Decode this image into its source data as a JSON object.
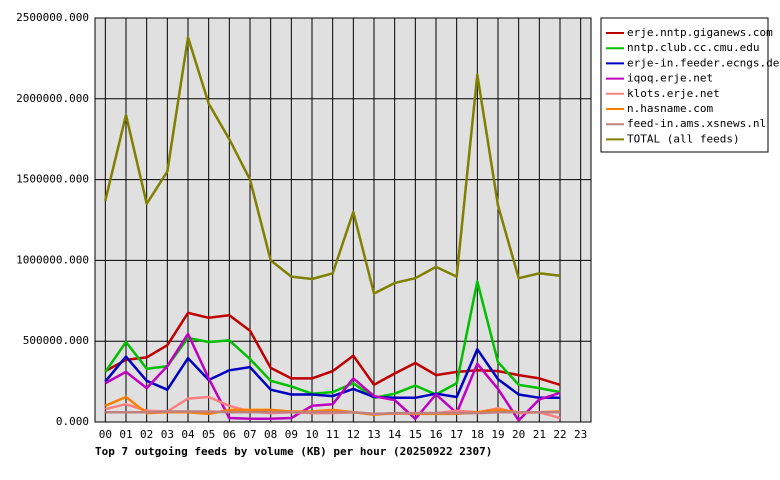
{
  "chart_data": {
    "type": "line",
    "title": "Top 7 outgoing feeds by volume (KB) per hour (20250922 2307)",
    "categories": [
      "00",
      "01",
      "02",
      "03",
      "04",
      "05",
      "06",
      "07",
      "08",
      "09",
      "10",
      "11",
      "12",
      "13",
      "14",
      "15",
      "16",
      "17",
      "18",
      "19",
      "20",
      "21",
      "22",
      "23"
    ],
    "ylim": [
      0,
      2500000
    ],
    "yticks": [
      {
        "value": 0,
        "label": "0.000"
      },
      {
        "value": 500000,
        "label": "500000.000"
      },
      {
        "value": 1000000,
        "label": "1000000.000"
      },
      {
        "value": 1500000,
        "label": "1500000.000"
      },
      {
        "value": 2000000,
        "label": "2000000.000"
      },
      {
        "value": 2500000,
        "label": "2500000.000"
      }
    ],
    "grid": true,
    "legend": "right",
    "series": [
      {
        "name": "erje.nntp.giganews.com",
        "color": "#c00000",
        "values": [
          315000,
          385000,
          400000,
          475000,
          675000,
          645000,
          660000,
          565000,
          335000,
          270000,
          270000,
          315000,
          410000,
          230000,
          300000,
          365000,
          290000,
          310000,
          320000,
          315000,
          290000,
          270000,
          230000,
          null
        ]
      },
      {
        "name": "nntp.club.cc.cmu.edu",
        "color": "#00c000",
        "values": [
          310000,
          495000,
          330000,
          345000,
          520000,
          495000,
          505000,
          390000,
          255000,
          220000,
          175000,
          185000,
          240000,
          150000,
          175000,
          225000,
          170000,
          240000,
          870000,
          370000,
          230000,
          210000,
          185000,
          null
        ]
      },
      {
        "name": "erje-in.feeder.ecngs.de",
        "color": "#0000c0",
        "values": [
          250000,
          405000,
          255000,
          200000,
          395000,
          260000,
          320000,
          340000,
          200000,
          170000,
          170000,
          160000,
          205000,
          155000,
          150000,
          150000,
          175000,
          155000,
          450000,
          265000,
          170000,
          150000,
          150000,
          null
        ]
      },
      {
        "name": "iqoq.erje.net",
        "color": "#c000c0",
        "values": [
          240000,
          310000,
          210000,
          345000,
          545000,
          270000,
          25000,
          20000,
          20000,
          25000,
          100000,
          110000,
          270000,
          160000,
          135000,
          20000,
          170000,
          55000,
          360000,
          205000,
          10000,
          140000,
          180000,
          null
        ]
      },
      {
        "name": "klots.erje.net",
        "color": "#ff8080",
        "values": [
          80000,
          110000,
          70000,
          65000,
          145000,
          155000,
          100000,
          65000,
          55000,
          60000,
          55000,
          55000,
          60000,
          50000,
          50000,
          55000,
          55000,
          70000,
          60000,
          85000,
          55000,
          60000,
          25000,
          null
        ]
      },
      {
        "name": "n.hasname.com",
        "color": "#ff8000",
        "values": [
          100000,
          155000,
          55000,
          60000,
          60000,
          50000,
          75000,
          75000,
          75000,
          65000,
          65000,
          75000,
          60000,
          45000,
          55000,
          50000,
          50000,
          50000,
          60000,
          75000,
          60000,
          60000,
          65000,
          null
        ]
      },
      {
        "name": "feed-in.ams.xsnews.nl",
        "color": "#c08080",
        "values": [
          60000,
          60000,
          60000,
          65000,
          65000,
          65000,
          60000,
          60000,
          60000,
          60000,
          60000,
          60000,
          60000,
          50000,
          55000,
          55000,
          55000,
          55000,
          55000,
          60000,
          60000,
          60000,
          60000,
          null
        ]
      },
      {
        "name": "TOTAL (all feeds)",
        "color": "#808000",
        "values": [
          1370000,
          1900000,
          1350000,
          1550000,
          2380000,
          1970000,
          1750000,
          1500000,
          1000000,
          900000,
          885000,
          920000,
          1300000,
          795000,
          860000,
          890000,
          960000,
          900000,
          2150000,
          1340000,
          890000,
          920000,
          905000,
          null
        ]
      }
    ]
  }
}
